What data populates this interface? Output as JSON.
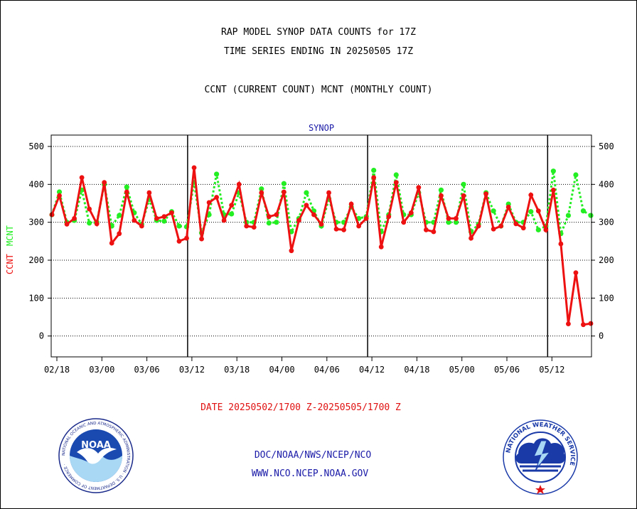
{
  "header": {
    "title_line1": "RAP MODEL SYNOP DATA COUNTS for 17Z",
    "title_line2": "TIME SERIES ENDING IN 20250505 17Z",
    "subtitle": "CCNT (CURRENT COUNT) MCNT (MONTHLY COUNT)"
  },
  "footer": {
    "date_range": "DATE 20250502/1700 Z-20250505/1700 Z",
    "link1": "DOC/NOAA/NWS/NCEP/NCO",
    "link2": "WWW.NCO.NCEP.NOAA.GOV"
  },
  "logos": {
    "noaa_text": "NOAA",
    "noaa_ring": "NATIONAL OCEANIC AND ATMOSPHERIC ADMINISTRATION · U.S. DEPARTMENT OF COMMERCE ·",
    "nws_ring": "NATIONAL WEATHER SERVICE"
  },
  "chart_data": {
    "type": "line",
    "title": "SYNOP",
    "ylabel_ccnt": "CCNT",
    "ylabel_mcnt": "MCNT",
    "ylim": [
      -55,
      530
    ],
    "yticks": [
      "0",
      "100",
      "200",
      "300",
      "400",
      "500"
    ],
    "x_tick_labels": [
      "02/18",
      "03/00",
      "03/06",
      "03/12",
      "03/18",
      "04/00",
      "04/06",
      "04/12",
      "04/18",
      "05/00",
      "05/06",
      "05/12"
    ],
    "colors": {
      "ccnt": "#ee1111",
      "mcnt": "#22ee22"
    },
    "series": [
      {
        "name": "CCNT",
        "values": [
          320,
          370,
          295,
          310,
          418,
          335,
          296,
          405,
          245,
          270,
          380,
          305,
          290,
          378,
          310,
          315,
          325,
          250,
          258,
          444,
          256,
          352,
          366,
          305,
          345,
          400,
          290,
          287,
          378,
          315,
          320,
          380,
          225,
          305,
          345,
          320,
          295,
          378,
          282,
          280,
          348,
          290,
          310,
          418,
          235,
          315,
          405,
          300,
          325,
          392,
          280,
          275,
          370,
          310,
          310,
          370,
          258,
          290,
          375,
          282,
          290,
          340,
          296,
          285,
          372,
          330,
          280,
          385,
          243,
          32,
          167,
          30,
          33
        ]
      },
      {
        "name": "MCNT",
        "values": [
          320,
          380,
          300,
          305,
          385,
          298,
          300,
          400,
          290,
          318,
          393,
          325,
          295,
          360,
          305,
          303,
          328,
          290,
          288,
          405,
          272,
          320,
          427,
          320,
          322,
          378,
          300,
          300,
          388,
          298,
          300,
          402,
          275,
          310,
          378,
          330,
          290,
          362,
          300,
          300,
          340,
          310,
          315,
          437,
          275,
          320,
          425,
          320,
          320,
          378,
          300,
          300,
          385,
          300,
          300,
          400,
          275,
          295,
          378,
          330,
          290,
          348,
          300,
          300,
          328,
          280,
          290,
          435,
          270,
          318,
          425,
          330,
          318
        ]
      }
    ],
    "grid": true,
    "legend": "none"
  }
}
